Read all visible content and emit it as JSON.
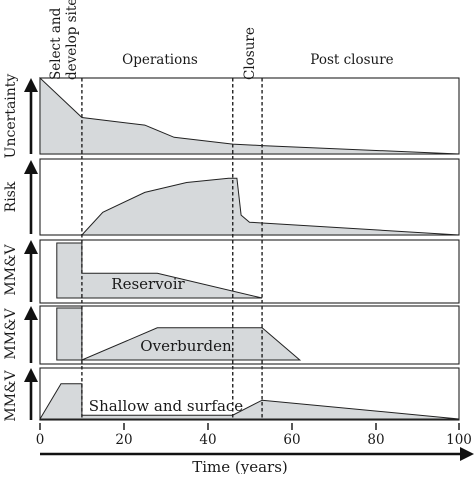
{
  "phases": {
    "select": [
      "Select and",
      "develop site"
    ],
    "operations": "Operations",
    "closure": "Closure",
    "post_closure": "Post closure"
  },
  "panel_labels": {
    "uncertainty": "Uncertainty",
    "risk": "Risk",
    "mmv": "MM&V"
  },
  "region_labels": {
    "reservoir": "Reservoir",
    "overburden": "Overburden",
    "shallow": "Shallow and surface"
  },
  "x_axis": {
    "label": "Time (years)",
    "ticks": [
      "0",
      "20",
      "40",
      "60",
      "80",
      "100"
    ]
  },
  "chart_data": {
    "type": "area",
    "x_unit": "years",
    "xlim": [
      0,
      100
    ],
    "phase_boundaries": [
      10,
      46,
      53
    ],
    "series": [
      {
        "name": "Uncertainty",
        "x": [
          0,
          10,
          25,
          32,
          46,
          53,
          100
        ],
        "y": [
          1.0,
          0.48,
          0.38,
          0.22,
          0.13,
          0.11,
          0.0
        ]
      },
      {
        "name": "Risk",
        "x": [
          10,
          15,
          25,
          35,
          45,
          47,
          48,
          50,
          100
        ],
        "y": [
          0.0,
          0.32,
          0.6,
          0.74,
          0.8,
          0.8,
          0.28,
          0.18,
          0.0
        ]
      },
      {
        "name": "Reservoir",
        "x": [
          4,
          4,
          10,
          10,
          28,
          53,
          53
        ],
        "y": [
          0.0,
          1.0,
          1.0,
          0.45,
          0.45,
          0.0,
          0.0
        ]
      },
      {
        "name": "Overburden",
        "x": [
          4,
          4,
          10,
          10,
          28,
          53,
          62
        ],
        "y": [
          0.0,
          1.0,
          1.0,
          0.0,
          0.62,
          0.62,
          0.0
        ]
      },
      {
        "name": "Shallow and surface",
        "x": [
          0,
          5,
          10,
          10,
          46,
          53,
          100
        ],
        "y": [
          0.0,
          0.75,
          0.75,
          0.08,
          0.08,
          0.4,
          0.0
        ]
      }
    ]
  }
}
